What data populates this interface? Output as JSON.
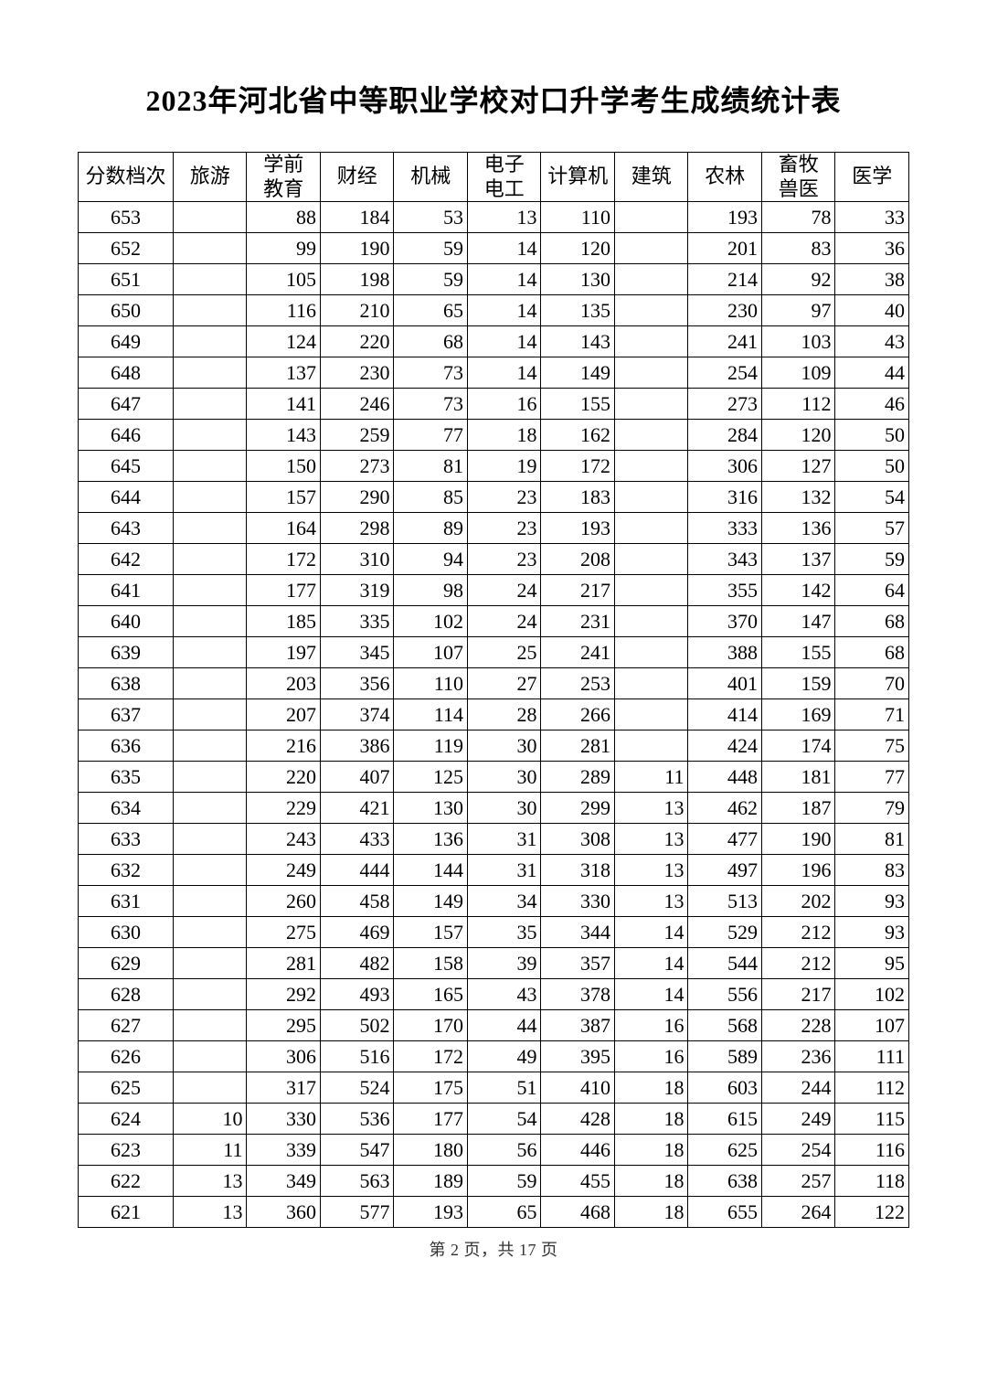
{
  "title": "2023年河北省中等职业学校对口升学考生成绩统计表",
  "footer_prefix": "第",
  "footer_page": "2",
  "footer_mid": "页，共",
  "footer_total": "17",
  "footer_suffix": "页",
  "columns": [
    "分数档次",
    "旅游",
    "学前教育",
    "财经",
    "机械",
    "电子电工",
    "计算机",
    "建筑",
    "农林",
    "畜牧兽医",
    "医学"
  ],
  "rows": [
    [
      "653",
      "",
      "88",
      "184",
      "53",
      "13",
      "110",
      "",
      "193",
      "78",
      "33"
    ],
    [
      "652",
      "",
      "99",
      "190",
      "59",
      "14",
      "120",
      "",
      "201",
      "83",
      "36"
    ],
    [
      "651",
      "",
      "105",
      "198",
      "59",
      "14",
      "130",
      "",
      "214",
      "92",
      "38"
    ],
    [
      "650",
      "",
      "116",
      "210",
      "65",
      "14",
      "135",
      "",
      "230",
      "97",
      "40"
    ],
    [
      "649",
      "",
      "124",
      "220",
      "68",
      "14",
      "143",
      "",
      "241",
      "103",
      "43"
    ],
    [
      "648",
      "",
      "137",
      "230",
      "73",
      "14",
      "149",
      "",
      "254",
      "109",
      "44"
    ],
    [
      "647",
      "",
      "141",
      "246",
      "73",
      "16",
      "155",
      "",
      "273",
      "112",
      "46"
    ],
    [
      "646",
      "",
      "143",
      "259",
      "77",
      "18",
      "162",
      "",
      "284",
      "120",
      "50"
    ],
    [
      "645",
      "",
      "150",
      "273",
      "81",
      "19",
      "172",
      "",
      "306",
      "127",
      "50"
    ],
    [
      "644",
      "",
      "157",
      "290",
      "85",
      "23",
      "183",
      "",
      "316",
      "132",
      "54"
    ],
    [
      "643",
      "",
      "164",
      "298",
      "89",
      "23",
      "193",
      "",
      "333",
      "136",
      "57"
    ],
    [
      "642",
      "",
      "172",
      "310",
      "94",
      "23",
      "208",
      "",
      "343",
      "137",
      "59"
    ],
    [
      "641",
      "",
      "177",
      "319",
      "98",
      "24",
      "217",
      "",
      "355",
      "142",
      "64"
    ],
    [
      "640",
      "",
      "185",
      "335",
      "102",
      "24",
      "231",
      "",
      "370",
      "147",
      "68"
    ],
    [
      "639",
      "",
      "197",
      "345",
      "107",
      "25",
      "241",
      "",
      "388",
      "155",
      "68"
    ],
    [
      "638",
      "",
      "203",
      "356",
      "110",
      "27",
      "253",
      "",
      "401",
      "159",
      "70"
    ],
    [
      "637",
      "",
      "207",
      "374",
      "114",
      "28",
      "266",
      "",
      "414",
      "169",
      "71"
    ],
    [
      "636",
      "",
      "216",
      "386",
      "119",
      "30",
      "281",
      "",
      "424",
      "174",
      "75"
    ],
    [
      "635",
      "",
      "220",
      "407",
      "125",
      "30",
      "289",
      "11",
      "448",
      "181",
      "77"
    ],
    [
      "634",
      "",
      "229",
      "421",
      "130",
      "30",
      "299",
      "13",
      "462",
      "187",
      "79"
    ],
    [
      "633",
      "",
      "243",
      "433",
      "136",
      "31",
      "308",
      "13",
      "477",
      "190",
      "81"
    ],
    [
      "632",
      "",
      "249",
      "444",
      "144",
      "31",
      "318",
      "13",
      "497",
      "196",
      "83"
    ],
    [
      "631",
      "",
      "260",
      "458",
      "149",
      "34",
      "330",
      "13",
      "513",
      "202",
      "93"
    ],
    [
      "630",
      "",
      "275",
      "469",
      "157",
      "35",
      "344",
      "14",
      "529",
      "212",
      "93"
    ],
    [
      "629",
      "",
      "281",
      "482",
      "158",
      "39",
      "357",
      "14",
      "544",
      "212",
      "95"
    ],
    [
      "628",
      "",
      "292",
      "493",
      "165",
      "43",
      "378",
      "14",
      "556",
      "217",
      "102"
    ],
    [
      "627",
      "",
      "295",
      "502",
      "170",
      "44",
      "387",
      "16",
      "568",
      "228",
      "107"
    ],
    [
      "626",
      "",
      "306",
      "516",
      "172",
      "49",
      "395",
      "16",
      "589",
      "236",
      "111"
    ],
    [
      "625",
      "",
      "317",
      "524",
      "175",
      "51",
      "410",
      "18",
      "603",
      "244",
      "112"
    ],
    [
      "624",
      "10",
      "330",
      "536",
      "177",
      "54",
      "428",
      "18",
      "615",
      "249",
      "115"
    ],
    [
      "623",
      "11",
      "339",
      "547",
      "180",
      "56",
      "446",
      "18",
      "625",
      "254",
      "116"
    ],
    [
      "622",
      "13",
      "349",
      "563",
      "189",
      "59",
      "455",
      "18",
      "638",
      "257",
      "118"
    ],
    [
      "621",
      "13",
      "360",
      "577",
      "193",
      "65",
      "468",
      "18",
      "655",
      "264",
      "122"
    ]
  ],
  "style": {
    "background_color": "#ffffff",
    "border_color": "#000000",
    "title_fontsize": 32,
    "cell_fontsize": 22,
    "footer_fontsize": 18,
    "watermark_color": "rgba(235,150,160,0.2)"
  }
}
